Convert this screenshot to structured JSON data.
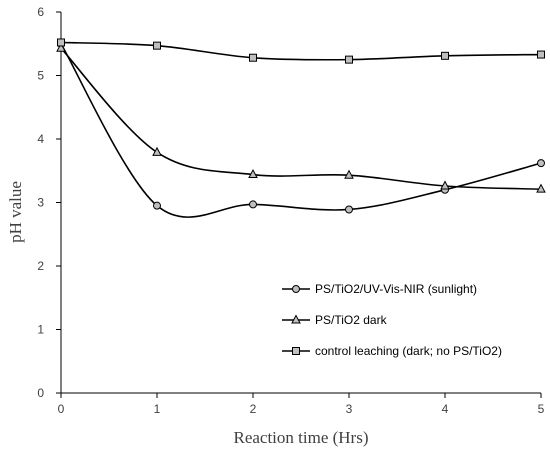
{
  "chart_data": {
    "type": "line",
    "title": "",
    "xlabel": "Reaction time (Hrs)",
    "ylabel": "pH value",
    "xlim": [
      0,
      5
    ],
    "ylim": [
      0,
      6
    ],
    "x_ticks": [
      "0",
      "1",
      "2",
      "3",
      "4",
      "5"
    ],
    "y_ticks": [
      "0",
      "1",
      "2",
      "3",
      "4",
      "5",
      "6"
    ],
    "grid": false,
    "smoothed": true,
    "legend_position": "lower-right",
    "series": [
      {
        "name": "PS/TiO2/UV-Vis-NIR (sunlight)",
        "marker": "circle",
        "x": [
          0,
          1,
          2,
          3,
          4,
          5
        ],
        "y": [
          5.5,
          2.95,
          2.97,
          2.89,
          3.2,
          3.62
        ]
      },
      {
        "name": "PS/TiO2 dark",
        "marker": "triangle",
        "x": [
          0,
          1,
          2,
          3,
          4,
          5
        ],
        "y": [
          5.43,
          3.79,
          3.44,
          3.43,
          3.26,
          3.21
        ]
      },
      {
        "name": "control leaching (dark; no PS/TiO2)",
        "marker": "square",
        "x": [
          0,
          1,
          2,
          3,
          4,
          5
        ],
        "y": [
          5.52,
          5.47,
          5.28,
          5.25,
          5.31,
          5.33
        ]
      }
    ],
    "colors": {
      "line": "#000000",
      "marker_fill": "#bfbfbf",
      "axis": "#000000",
      "text": "#404040"
    }
  }
}
